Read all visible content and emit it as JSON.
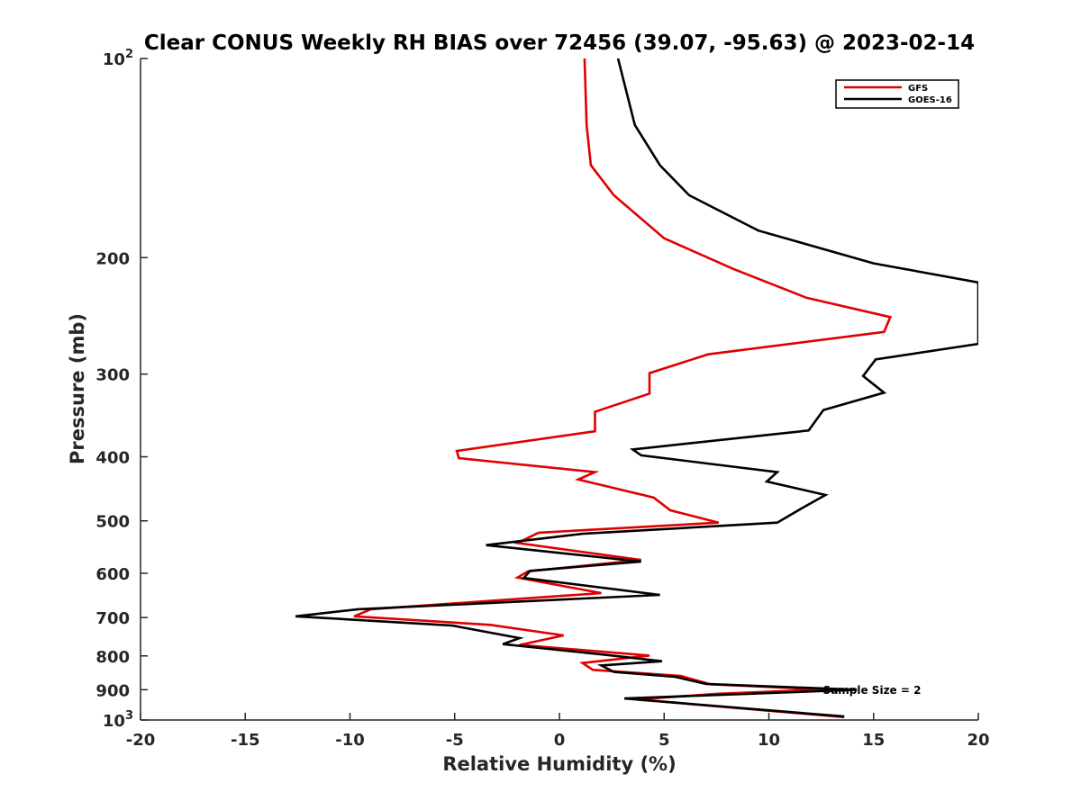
{
  "chart_data": {
    "type": "line",
    "title": "Clear CONUS Weekly RH BIAS over 72456 (39.07, -95.63) @ 2023-02-14",
    "xlabel": "Relative Humidity (%)",
    "ylabel": "Pressure (mb)",
    "xlim": [
      -20,
      20
    ],
    "ylim": [
      100,
      1000
    ],
    "yscale": "log",
    "y_reversed": true,
    "grid": false,
    "xticks": [
      -20,
      -15,
      -10,
      -5,
      0,
      5,
      10,
      15,
      20
    ],
    "xtick_labels": [
      "-20",
      "-15",
      "-10",
      "-5",
      "0",
      "5",
      "10",
      "15",
      "20"
    ],
    "yticks": [
      200,
      300,
      400,
      500,
      600,
      700,
      800,
      900
    ],
    "ytick_labels": [
      "200",
      "300",
      "400",
      "500",
      "600",
      "700",
      "800",
      "900"
    ],
    "ytick_end_labels": [
      {
        "value": 100,
        "base": "10",
        "exp": "2"
      },
      {
        "value": 1000,
        "base": "10",
        "exp": "3"
      }
    ],
    "legend_position": "top-right",
    "annotation": "Sample Size = 2",
    "series": [
      {
        "name": "GFS",
        "color": "#e00000",
        "x": [
          1.2,
          1.3,
          1.5,
          2.6,
          5,
          8.3,
          11.8,
          15.8,
          15.5,
          7.1,
          4.3,
          4.3,
          1.7,
          1.7,
          -4.9,
          -4.8,
          1.7,
          0.9,
          4.5,
          5.3,
          7.6,
          -1.0,
          -2.0,
          3.9,
          -1.5,
          -2.0,
          2.0,
          -9.0,
          -9.8,
          -3.3,
          0.2,
          -1.9,
          4.3,
          1.1,
          1.6,
          5.8,
          7.2,
          12.6,
          7.5,
          3.7,
          13.6
        ],
        "y": [
          100,
          126,
          145,
          161,
          187,
          208,
          230,
          246,
          259,
          280,
          299,
          321,
          342,
          366,
          392,
          402,
          422,
          433,
          461,
          482,
          503,
          521,
          540,
          573,
          596,
          609,
          643,
          680,
          697,
          718,
          745,
          770,
          799,
          820,
          840,
          858,
          883,
          899,
          913,
          931,
          990
        ]
      },
      {
        "name": "GOES-16",
        "color": "#000000",
        "x": [
          2.8,
          3.6,
          4.8,
          6.2,
          9.5,
          15,
          20,
          20,
          15.1,
          14.5,
          15.5,
          12.6,
          11.9,
          3.5,
          3.9,
          10.4,
          9.9,
          12.7,
          11.6,
          10.4,
          1.1,
          -3.5,
          3.9,
          -1.4,
          -1.7,
          4.8,
          -9.6,
          -12.6,
          -5.1,
          -1.9,
          -2.7,
          2.2,
          4.9,
          2.0,
          2.6,
          5.5,
          7.0,
          14.2,
          3.1,
          13.6
        ],
        "y": [
          100,
          126,
          145,
          161,
          182,
          204,
          218,
          270,
          285,
          302,
          320,
          340,
          365,
          390,
          398,
          422,
          436,
          457,
          478,
          503,
          523,
          544,
          576,
          595,
          610,
          647,
          680,
          697,
          720,
          752,
          768,
          797,
          815,
          827,
          846,
          860,
          882,
          900,
          928,
          988
        ]
      }
    ]
  }
}
